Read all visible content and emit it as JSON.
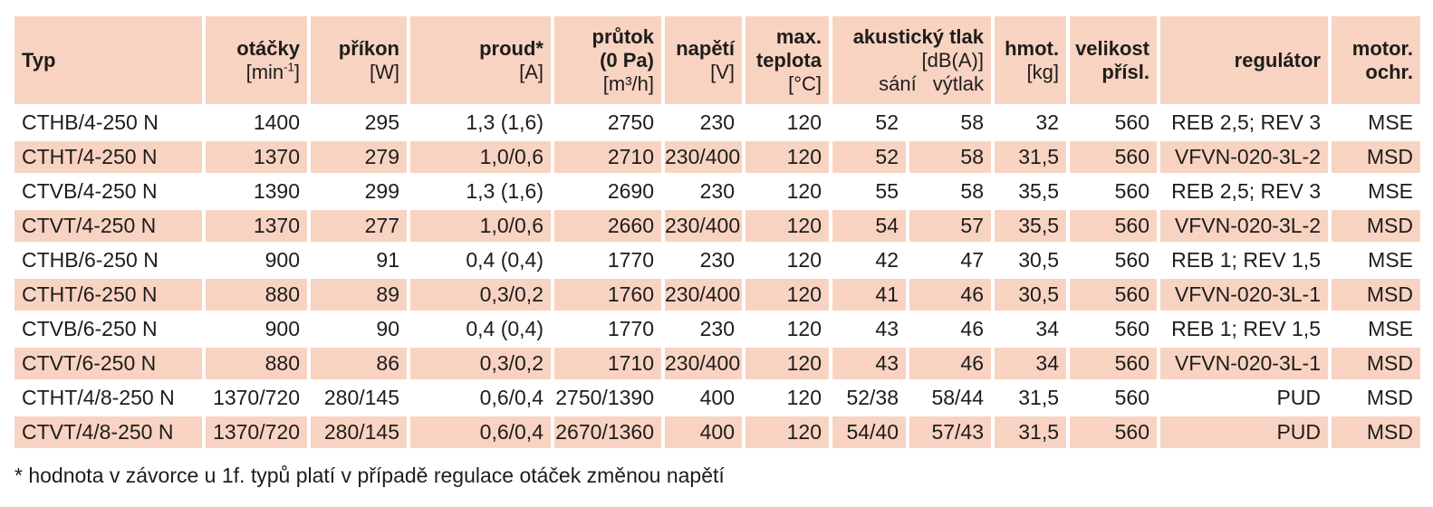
{
  "colors": {
    "row_highlight": "#f9d3c2",
    "text": "#1d1d1b",
    "background": "#ffffff"
  },
  "footnote": "* hodnota v závorce u 1f. typů platí v případě regulace otáček změnou napětí",
  "table": {
    "column_keys": [
      "typ",
      "otacky",
      "prikon",
      "proud",
      "prutok",
      "napeti",
      "teplota",
      "sani",
      "vytlak",
      "hmot",
      "velikost",
      "regulator",
      "motor"
    ],
    "header": {
      "typ": {
        "label": "Typ"
      },
      "otacky": {
        "label": "otáčky",
        "unit_prefix": "[min",
        "unit_sup": "-1",
        "unit_suffix": "]"
      },
      "prikon": {
        "label": "příkon",
        "unit": "[W]"
      },
      "proud": {
        "label": "proud*",
        "unit": "[A]"
      },
      "prutok": {
        "label": "průtok",
        "label2": "(0 Pa)",
        "unit": "[m³/h]"
      },
      "napeti": {
        "label": "napětí",
        "unit": "[V]"
      },
      "teplota": {
        "label": "max.",
        "label2": "teplota",
        "unit": "[°C]"
      },
      "akusticky": {
        "label": "akustický tlak",
        "unit": "[dB(A)]",
        "sub_sani": "sání",
        "sub_vytlak": "výtlak"
      },
      "hmot": {
        "label": "hmot.",
        "unit": "[kg]"
      },
      "velikost": {
        "label": "velikost",
        "label2": "přísl."
      },
      "regulator": {
        "label": "regulátor"
      },
      "motor": {
        "label": "motor.",
        "label2": "ochr."
      }
    },
    "rows": [
      {
        "cells": [
          "CTHB/4-250 N",
          "1400",
          "295",
          "1,3 (1,6)",
          "2750",
          "230",
          "120",
          "52",
          "58",
          "32",
          "560",
          "REB 2,5; REV 3",
          "MSE"
        ]
      },
      {
        "cells": [
          "CTHT/4-250 N",
          "1370",
          "279",
          "1,0/0,6",
          "2710",
          "230/400",
          "120",
          "52",
          "58",
          "31,5",
          "560",
          "VFVN-020-3L-2",
          "MSD"
        ]
      },
      {
        "cells": [
          "CTVB/4-250 N",
          "1390",
          "299",
          "1,3 (1,6)",
          "2690",
          "230",
          "120",
          "55",
          "58",
          "35,5",
          "560",
          "REB 2,5; REV 3",
          "MSE"
        ]
      },
      {
        "cells": [
          "CTVT/4-250 N",
          "1370",
          "277",
          "1,0/0,6",
          "2660",
          "230/400",
          "120",
          "54",
          "57",
          "35,5",
          "560",
          "VFVN-020-3L-2",
          "MSD"
        ]
      },
      {
        "cells": [
          "CTHB/6-250 N",
          "900",
          "91",
          "0,4 (0,4)",
          "1770",
          "230",
          "120",
          "42",
          "47",
          "30,5",
          "560",
          "REB 1; REV 1,5",
          "MSE"
        ]
      },
      {
        "cells": [
          "CTHT/6-250 N",
          "880",
          "89",
          "0,3/0,2",
          "1760",
          "230/400",
          "120",
          "41",
          "46",
          "30,5",
          "560",
          "VFVN-020-3L-1",
          "MSD"
        ]
      },
      {
        "cells": [
          "CTVB/6-250 N",
          "900",
          "90",
          "0,4 (0,4)",
          "1770",
          "230",
          "120",
          "43",
          "46",
          "34",
          "560",
          "REB 1; REV 1,5",
          "MSE"
        ]
      },
      {
        "cells": [
          "CTVT/6-250 N",
          "880",
          "86",
          "0,3/0,2",
          "1710",
          "230/400",
          "120",
          "43",
          "46",
          "34",
          "560",
          "VFVN-020-3L-1",
          "MSD"
        ]
      },
      {
        "cells": [
          "CTHT/4/8-250 N",
          "1370/720",
          "280/145",
          "0,6/0,4",
          "2750/1390",
          "400",
          "120",
          "52/38",
          "58/44",
          "31,5",
          "560",
          "PUD",
          "MSD"
        ]
      },
      {
        "cells": [
          "CTVT/4/8-250 N",
          "1370/720",
          "280/145",
          "0,6/0,4",
          "2670/1360",
          "400",
          "120",
          "54/40",
          "57/43",
          "31,5",
          "560",
          "PUD",
          "MSD"
        ]
      }
    ]
  }
}
